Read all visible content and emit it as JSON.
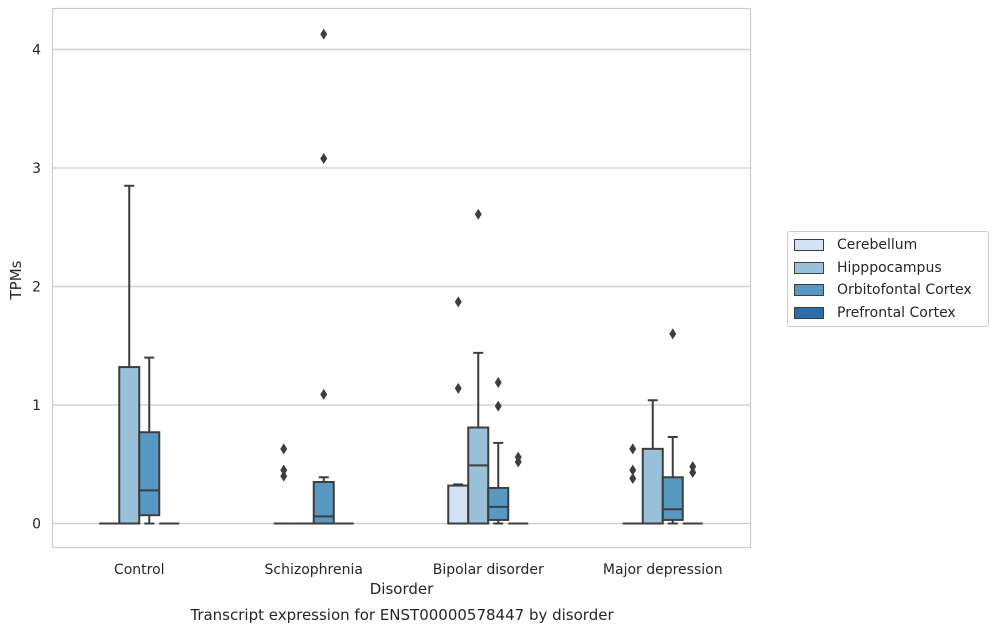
{
  "chart_data": {
    "type": "boxplot",
    "title": "",
    "caption": "Transcript expression for ENST00000578447 by disorder",
    "xlabel": "Disorder",
    "ylabel": "TPMs",
    "ylim": [
      -0.2,
      4.35
    ],
    "yticks": [
      0,
      1,
      2,
      3,
      4
    ],
    "grid": "horizontal",
    "legend_position": "right",
    "categories": [
      "Control",
      "Schizophrenia",
      "Bipolar disorder",
      "Major depression"
    ],
    "series": [
      {
        "name": "Cerebellum",
        "color": "#d2e3f3",
        "boxes": [
          {
            "q1": 0,
            "median": 0,
            "q3": 0,
            "whisker_low": 0,
            "whisker_high": 0,
            "outliers": []
          },
          {
            "q1": 0,
            "median": 0,
            "q3": 0,
            "whisker_low": 0,
            "whisker_high": 0,
            "outliers": [
              0.45,
              0.4,
              0.63
            ]
          },
          {
            "q1": 0,
            "median": 0,
            "q3": 0.32,
            "whisker_low": 0,
            "whisker_high": 0.33,
            "outliers": [
              1.14,
              1.87
            ]
          },
          {
            "q1": 0,
            "median": 0,
            "q3": 0,
            "whisker_low": 0,
            "whisker_high": 0,
            "outliers": [
              0.38,
              0.45,
              0.63
            ]
          }
        ]
      },
      {
        "name": "Hipppocampus",
        "color": "#9ac1da",
        "boxes": [
          {
            "q1": 0,
            "median": 0,
            "q3": 1.32,
            "whisker_low": 0,
            "whisker_high": 2.85,
            "outliers": []
          },
          {
            "q1": 0,
            "median": 0,
            "q3": 0,
            "whisker_low": 0,
            "whisker_high": 0,
            "outliers": []
          },
          {
            "q1": 0,
            "median": 0.49,
            "q3": 0.81,
            "whisker_low": 0,
            "whisker_high": 1.44,
            "outliers": [
              2.61
            ]
          },
          {
            "q1": 0,
            "median": 0,
            "q3": 0.63,
            "whisker_low": 0,
            "whisker_high": 1.04,
            "outliers": []
          }
        ]
      },
      {
        "name": "Orbitofontal Cortex",
        "color": "#5899c4",
        "boxes": [
          {
            "q1": 0.07,
            "median": 0.28,
            "q3": 0.77,
            "whisker_low": 0,
            "whisker_high": 1.4,
            "outliers": []
          },
          {
            "q1": 0,
            "median": 0.06,
            "q3": 0.35,
            "whisker_low": 0,
            "whisker_high": 0.39,
            "outliers": [
              1.09,
              3.08,
              4.13
            ]
          },
          {
            "q1": 0.03,
            "median": 0.14,
            "q3": 0.3,
            "whisker_low": 0,
            "whisker_high": 0.68,
            "outliers": [
              0.99,
              1.19
            ]
          },
          {
            "q1": 0.03,
            "median": 0.12,
            "q3": 0.39,
            "whisker_low": 0,
            "whisker_high": 0.73,
            "outliers": [
              1.6
            ]
          }
        ]
      },
      {
        "name": "Prefrontal Cortex",
        "color": "#2c6ea9",
        "boxes": [
          {
            "q1": 0,
            "median": 0,
            "q3": 0,
            "whisker_low": 0,
            "whisker_high": 0,
            "outliers": []
          },
          {
            "q1": 0,
            "median": 0,
            "q3": 0,
            "whisker_low": 0,
            "whisker_high": 0,
            "outliers": []
          },
          {
            "q1": 0,
            "median": 0,
            "q3": 0,
            "whisker_low": 0,
            "whisker_high": 0,
            "outliers": [
              0.52,
              0.56
            ]
          },
          {
            "q1": 0,
            "median": 0,
            "q3": 0,
            "whisker_low": 0,
            "whisker_high": 0,
            "outliers": [
              0.43,
              0.48
            ]
          }
        ]
      }
    ]
  }
}
